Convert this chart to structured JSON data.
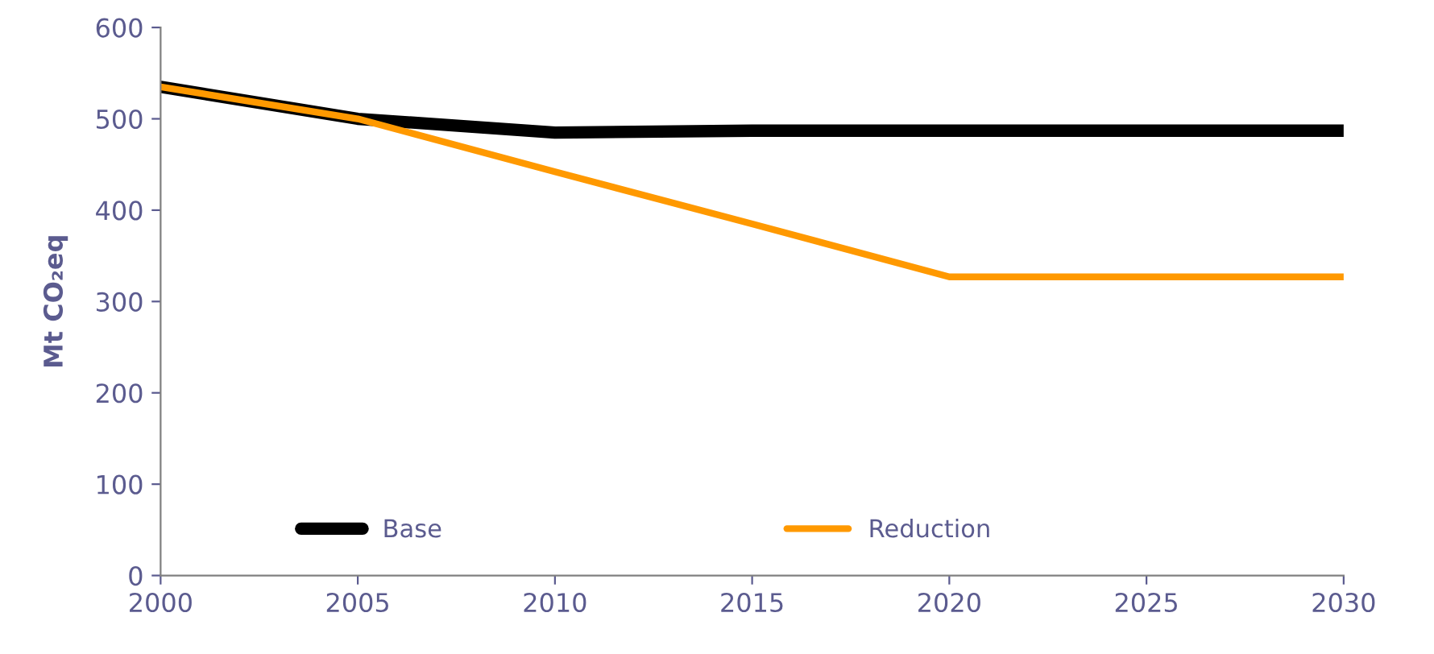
{
  "chart_data": {
    "type": "line",
    "ylabel": "Mt CO₂eq",
    "x": [
      2000,
      2005,
      2010,
      2015,
      2020,
      2025,
      2030
    ],
    "series": [
      {
        "name": "Base",
        "color": "#000000",
        "values": [
          535,
          500,
          485,
          487,
          487,
          487,
          487
        ]
      },
      {
        "name": "Reduction",
        "color": "#ff9900",
        "values": [
          535,
          500,
          442,
          385,
          327,
          327,
          327
        ]
      }
    ],
    "xlim": [
      2000,
      2030
    ],
    "xticks": [
      2000,
      2005,
      2010,
      2015,
      2020,
      2025,
      2030
    ],
    "ylim": [
      0,
      600
    ],
    "yticks": [
      0,
      100,
      200,
      300,
      400,
      500,
      600
    ],
    "grid": false,
    "legend": "bottom",
    "marker": "none",
    "line_style": "solid"
  }
}
